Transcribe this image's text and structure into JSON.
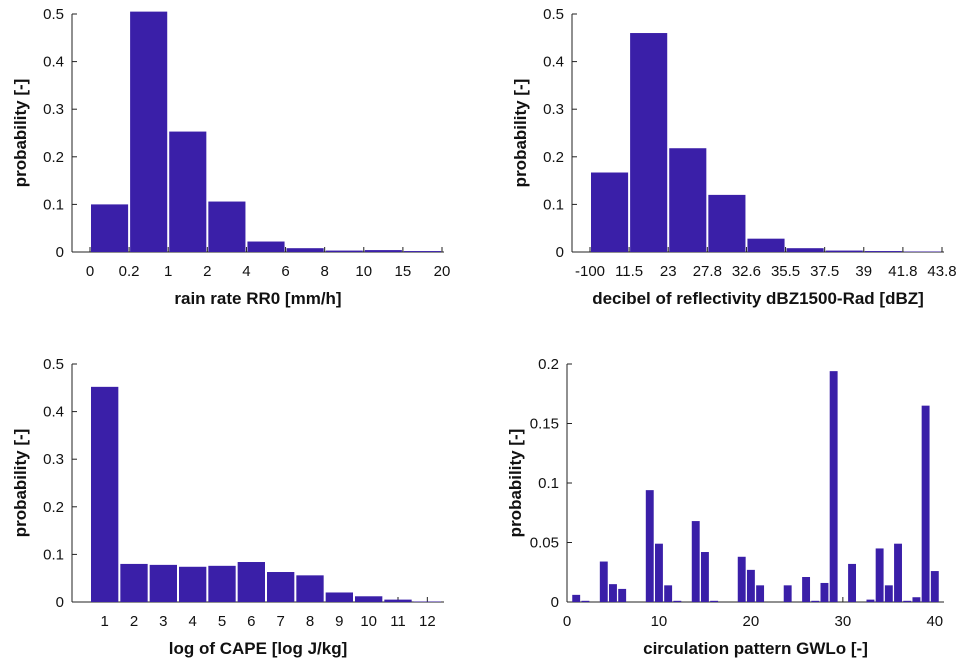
{
  "colors": {
    "bar": "#3a1fa8",
    "axis": "#222222",
    "text": "#111111",
    "background": "#ffffff"
  },
  "chart_data": [
    {
      "type": "bar",
      "x_tick_labels": [
        "0",
        "0.2",
        "1",
        "2",
        "4",
        "6",
        "8",
        "10",
        "15",
        "20"
      ],
      "categories": [
        "0–0.2",
        "0.2–1",
        "1–2",
        "2–4",
        "4–6",
        "6–8",
        "8–10",
        "10–15",
        "15–20"
      ],
      "values": [
        0.1,
        0.505,
        0.253,
        0.106,
        0.022,
        0.008,
        0.003,
        0.004,
        0.002
      ],
      "xlabel": "rain rate RR0 [mm/h]",
      "ylabel": "probability [-]",
      "ylim": [
        0,
        0.5
      ],
      "yticks": [
        "0",
        "0.1",
        "0.2",
        "0.3",
        "0.4",
        "0.5"
      ]
    },
    {
      "type": "bar",
      "x_tick_labels": [
        "-100",
        "11.5",
        "23",
        "27.8",
        "32.6",
        "35.5",
        "37.5",
        "39",
        "41.8",
        "43.8"
      ],
      "categories": [
        "-100–11.5",
        "11.5–23",
        "23–27.8",
        "27.8–32.6",
        "32.6–35.5",
        "35.5–37.5",
        "37.5–39",
        "39–41.8",
        "41.8–43.8"
      ],
      "values": [
        0.167,
        0.46,
        0.218,
        0.12,
        0.028,
        0.008,
        0.003,
        0.002,
        0.001
      ],
      "xlabel": "decibel of reflectivity dBZ1500-Rad [dBZ]",
      "ylabel": "probability [-]",
      "ylim": [
        0,
        0.5
      ],
      "yticks": [
        "0",
        "0.1",
        "0.2",
        "0.3",
        "0.4",
        "0.5"
      ]
    },
    {
      "type": "bar",
      "categories": [
        "1",
        "2",
        "3",
        "4",
        "5",
        "6",
        "7",
        "8",
        "9",
        "10",
        "11",
        "12"
      ],
      "values": [
        0.452,
        0.08,
        0.078,
        0.074,
        0.076,
        0.084,
        0.063,
        0.056,
        0.02,
        0.012,
        0.005,
        0.001
      ],
      "xlabel": "log of CAPE [log J/kg]",
      "ylabel": "probability [-]",
      "ylim": [
        0,
        0.5
      ],
      "yticks": [
        "0",
        "0.1",
        "0.2",
        "0.3",
        "0.4",
        "0.5"
      ]
    },
    {
      "type": "bar",
      "x": [
        1,
        2,
        3,
        4,
        5,
        6,
        7,
        8,
        9,
        10,
        11,
        12,
        13,
        14,
        15,
        16,
        17,
        18,
        19,
        20,
        21,
        22,
        23,
        24,
        25,
        26,
        27,
        28,
        29,
        30,
        31,
        32,
        33,
        34,
        35,
        36,
        37,
        38,
        39,
        40
      ],
      "values": [
        0.006,
        0.001,
        0,
        0.034,
        0.015,
        0.011,
        0,
        0,
        0.094,
        0.049,
        0.014,
        0.001,
        0,
        0.068,
        0.042,
        0.001,
        0,
        0,
        0.038,
        0.027,
        0.014,
        0,
        0,
        0.014,
        0,
        0.021,
        0.001,
        0.016,
        0.194,
        0,
        0.032,
        0,
        0.002,
        0.045,
        0.014,
        0.049,
        0.001,
        0.004,
        0.165,
        0.026
      ],
      "xlabel": "circulation pattern GWLo [-]",
      "ylabel": "probability [-]",
      "xlim": [
        0,
        41
      ],
      "xticks": [
        "0",
        "10",
        "20",
        "30",
        "40"
      ],
      "ylim": [
        0,
        0.2
      ],
      "yticks": [
        "0",
        "0.05",
        "0.1",
        "0.15",
        "0.2"
      ]
    }
  ]
}
